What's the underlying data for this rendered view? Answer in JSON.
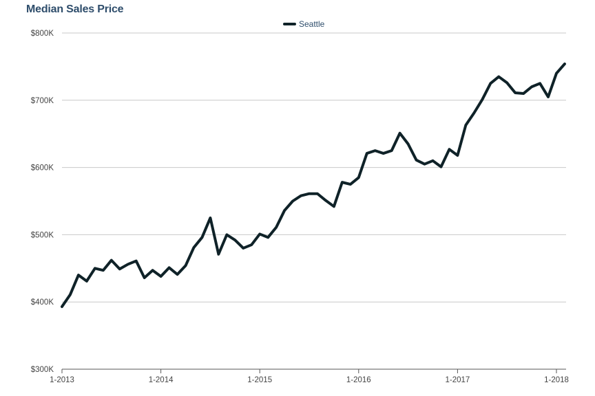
{
  "title": "Median Sales Price",
  "colors": {
    "line": "#0f2228",
    "grid": "#c8c8c8",
    "axis": "#555555",
    "title": "#2e4d6b"
  },
  "chart_data": {
    "type": "line",
    "title": "Median Sales Price",
    "xlabel": "",
    "ylabel": "",
    "legend": {
      "position": "top-center"
    },
    "grid": true,
    "x_ticks": [
      "1-2013",
      "1-2014",
      "1-2015",
      "1-2016",
      "1-2017",
      "1-2018"
    ],
    "y_ticks": [
      "$300K",
      "$400K",
      "$500K",
      "$600K",
      "$700K",
      "$800K"
    ],
    "ylim": [
      300000,
      800000
    ],
    "x_start": "1-2013",
    "x_end": "2-2018",
    "series": [
      {
        "name": "Seattle",
        "x": [
          "1-2013",
          "2-2013",
          "3-2013",
          "4-2013",
          "5-2013",
          "6-2013",
          "7-2013",
          "8-2013",
          "9-2013",
          "10-2013",
          "11-2013",
          "12-2013",
          "1-2014",
          "2-2014",
          "3-2014",
          "4-2014",
          "5-2014",
          "6-2014",
          "7-2014",
          "8-2014",
          "9-2014",
          "10-2014",
          "11-2014",
          "12-2014",
          "1-2015",
          "2-2015",
          "3-2015",
          "4-2015",
          "5-2015",
          "6-2015",
          "7-2015",
          "8-2015",
          "9-2015",
          "10-2015",
          "11-2015",
          "12-2015",
          "1-2016",
          "2-2016",
          "3-2016",
          "4-2016",
          "5-2016",
          "6-2016",
          "7-2016",
          "8-2016",
          "9-2016",
          "10-2016",
          "11-2016",
          "12-2016",
          "1-2017",
          "2-2017",
          "3-2017",
          "4-2017",
          "5-2017",
          "6-2017",
          "7-2017",
          "8-2017",
          "9-2017",
          "10-2017",
          "11-2017",
          "12-2017",
          "1-2018",
          "2-2018"
        ],
        "values": [
          393000,
          411000,
          440000,
          431000,
          450000,
          447000,
          462000,
          449000,
          456000,
          461000,
          436000,
          447000,
          438000,
          451000,
          441000,
          454000,
          481000,
          496000,
          525000,
          471000,
          500000,
          492000,
          480000,
          485000,
          501000,
          496000,
          511000,
          536000,
          550000,
          558000,
          561000,
          561000,
          551000,
          542000,
          578000,
          575000,
          585000,
          621000,
          625000,
          621000,
          625000,
          651000,
          635000,
          611000,
          605000,
          610000,
          601000,
          627000,
          618000,
          663000,
          681000,
          701000,
          725000,
          735000,
          726000,
          711000,
          710000,
          720000,
          725000,
          705000,
          740000,
          754000
        ]
      }
    ]
  }
}
